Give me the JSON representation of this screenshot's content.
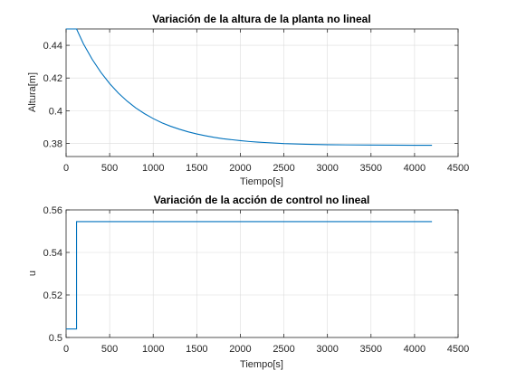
{
  "chart_data": [
    {
      "type": "line",
      "title": "Variación de la altura de la planta no lineal",
      "xlabel": "Tiempo[s]",
      "ylabel": "Altura[m]",
      "xlim": [
        0,
        4500
      ],
      "ylim": [
        0.372,
        0.45
      ],
      "xticks": [
        0,
        500,
        1000,
        1500,
        2000,
        2500,
        3000,
        3500,
        4000,
        4500
      ],
      "yticks": [
        0.38,
        0.4,
        0.42,
        0.44
      ],
      "ytick_labels": [
        "0.38",
        "0.4",
        "0.42",
        "0.44"
      ],
      "grid": true,
      "color": "#0072bd",
      "series": [
        {
          "x": [
            0,
            120,
            200,
            300,
            400,
            500,
            600,
            700,
            800,
            900,
            1000,
            1100,
            1200,
            1300,
            1400,
            1500,
            1600,
            1700,
            1800,
            1900,
            2000,
            2100,
            2200,
            2300,
            2500,
            2750,
            3000,
            3500,
            4000,
            4200
          ],
          "values": [
            0.45,
            0.45,
            0.4408,
            0.4314,
            0.4234,
            0.4166,
            0.4108,
            0.4059,
            0.4017,
            0.3982,
            0.3952,
            0.3926,
            0.3905,
            0.3887,
            0.3871,
            0.3858,
            0.3847,
            0.3837,
            0.3829,
            0.3823,
            0.3817,
            0.3812,
            0.3808,
            0.3805,
            0.3799,
            0.3795,
            0.3792,
            0.379,
            0.3789,
            0.3789
          ]
        }
      ]
    },
    {
      "type": "line",
      "title": "Variación de la acción de control no lineal",
      "xlabel": "Tiempo[s]",
      "ylabel": "u",
      "xlim": [
        0,
        4500
      ],
      "ylim": [
        0.5,
        0.56
      ],
      "xticks": [
        0,
        500,
        1000,
        1500,
        2000,
        2500,
        3000,
        3500,
        4000,
        4500
      ],
      "yticks": [
        0.5,
        0.52,
        0.54,
        0.56
      ],
      "ytick_labels": [
        "0.5",
        "0.52",
        "0.54",
        "0.56"
      ],
      "grid": true,
      "color": "#0072bd",
      "series": [
        {
          "x": [
            0,
            120,
            120,
            4200
          ],
          "values": [
            0.504,
            0.504,
            0.5545,
            0.5545
          ]
        }
      ]
    }
  ]
}
